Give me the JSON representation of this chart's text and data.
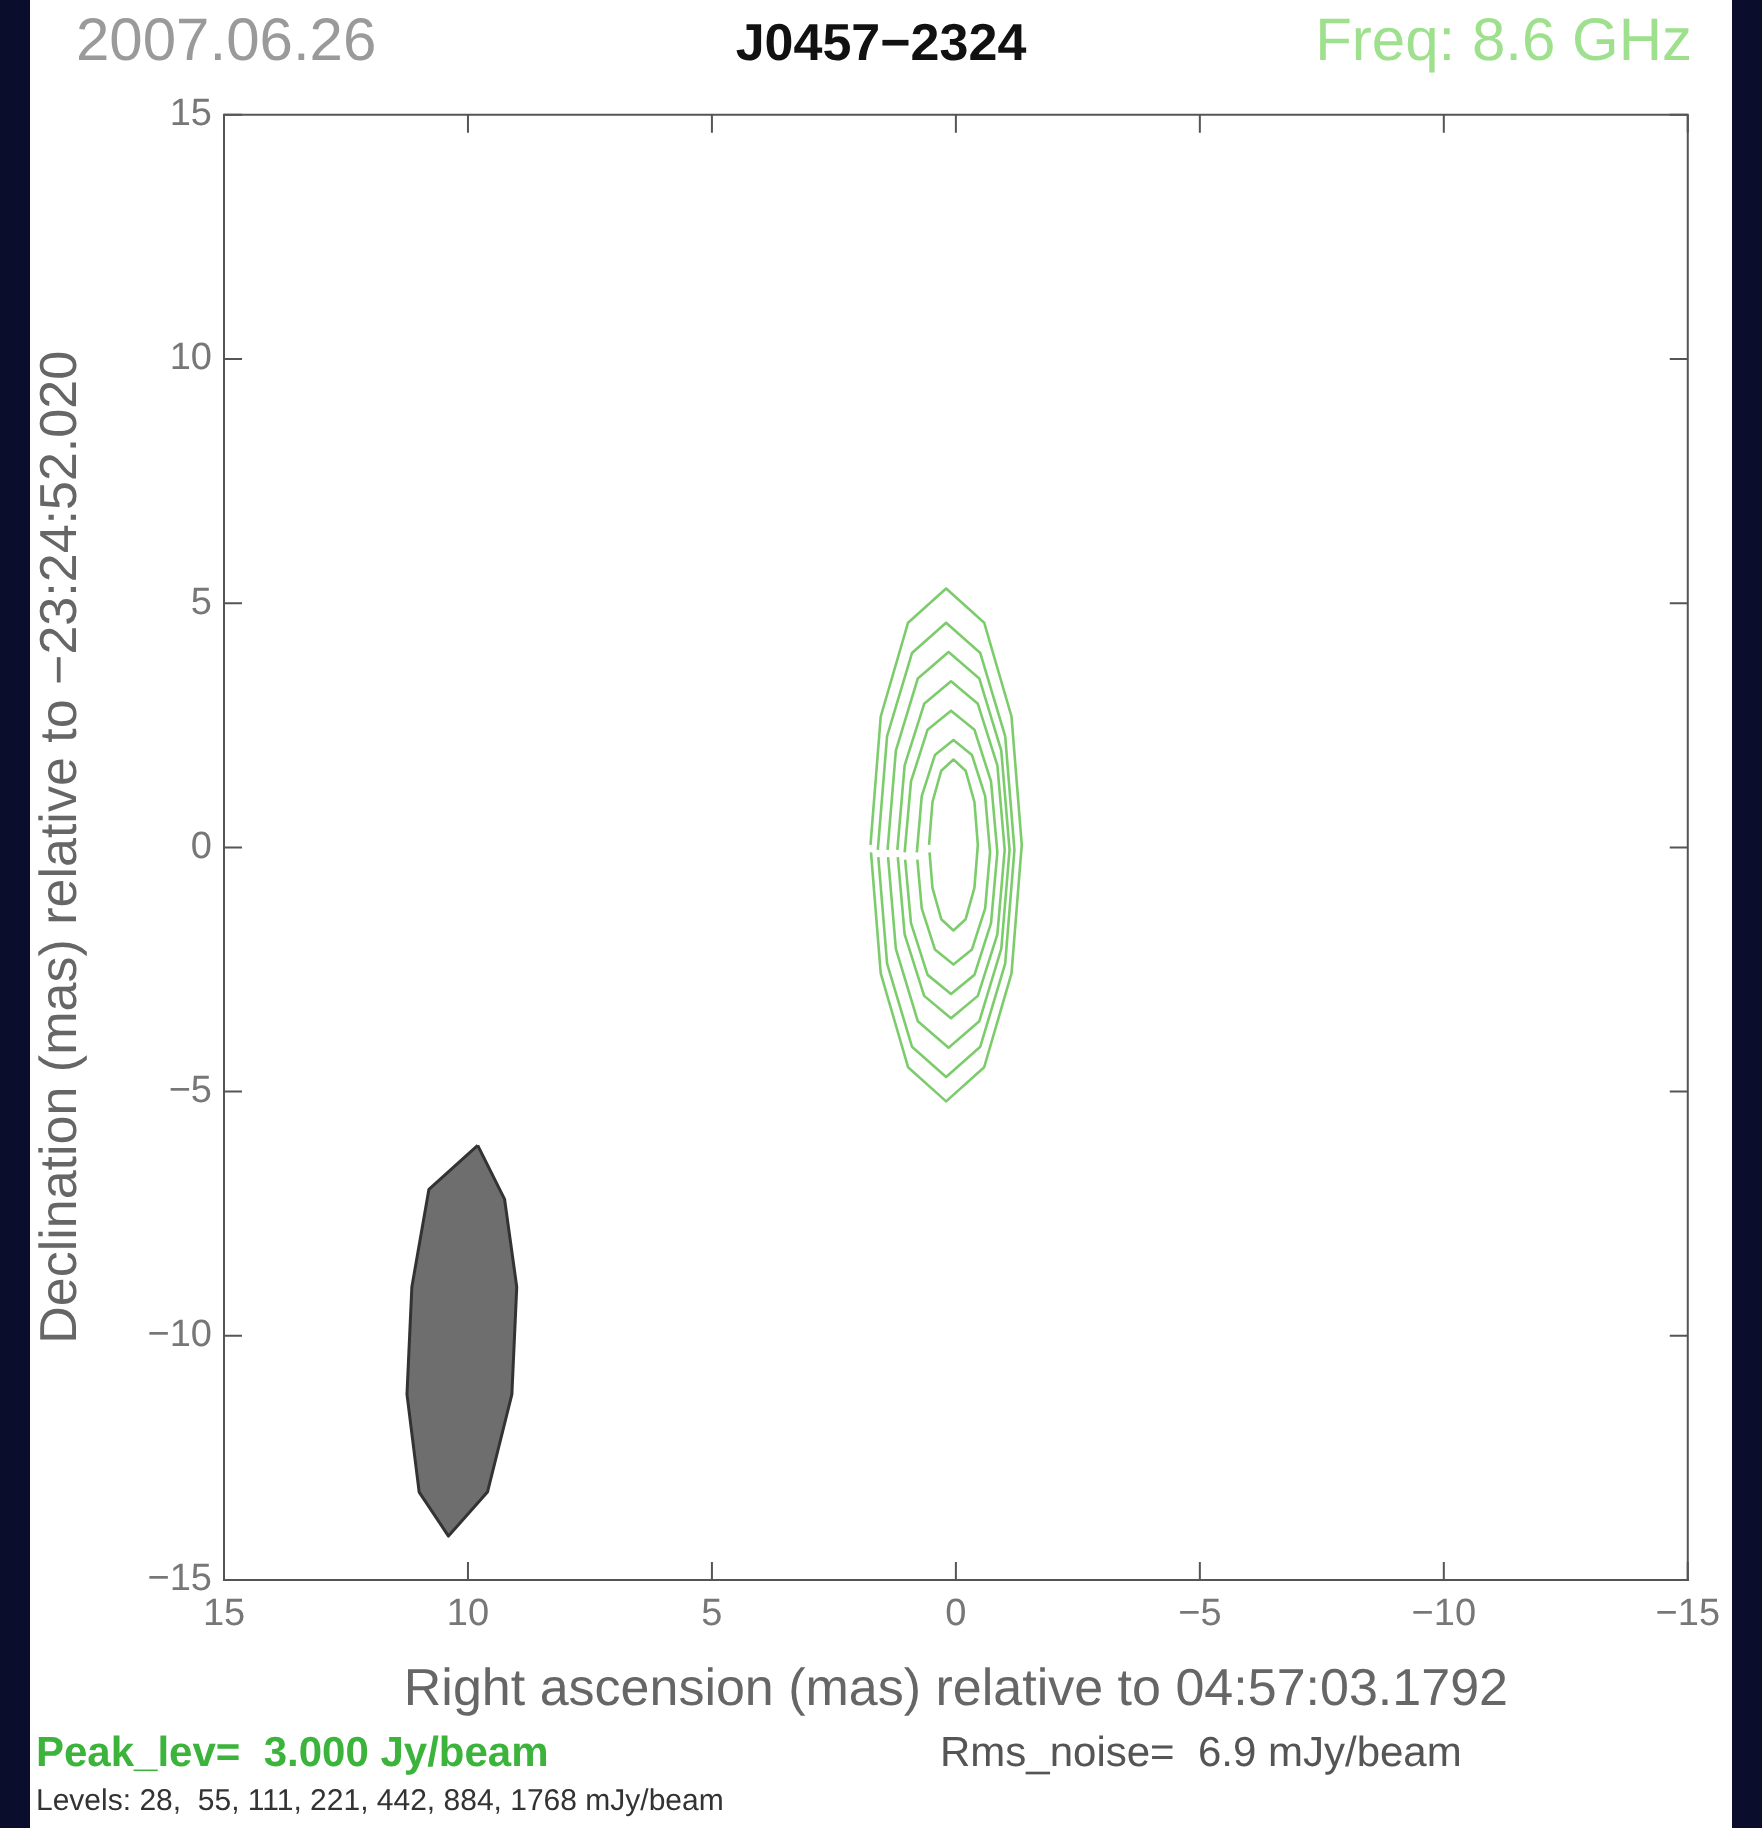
{
  "chart_data": {
    "type": "line",
    "title": "J0457−2324",
    "xlabel": "Right ascension (mas) relative to 04:57:03.1792",
    "ylabel": "Declination (mas) relative to −23:24:52.020",
    "annotations": [
      "2007.06.26",
      "Freq: 8.6 GHz",
      "Peak_lev=  3.000 Jy/beam",
      "Rms_noise=  6.9 mJy/beam",
      "Levels: 28,  55, 111, 221, 442, 884, 1768 mJy/beam"
    ],
    "xlim": [
      15,
      -15
    ],
    "xticks": [
      15,
      10,
      5,
      0,
      {
        "value": -5,
        "label": "−5"
      },
      {
        "value": -10,
        "label": "−10"
      },
      {
        "value": -15,
        "label": "−15"
      }
    ],
    "ylim": [
      -15,
      15
    ],
    "yticks": [
      {
        "value": -15,
        "label": "−15"
      },
      {
        "value": -10,
        "label": "−10"
      },
      {
        "value": -5,
        "label": "−5"
      },
      0,
      5,
      10,
      15
    ],
    "grid": false,
    "legend": false,
    "marker": "none",
    "line_style": "solid",
    "series": [
      {
        "color": "#7ccc6c",
        "x": [
          1.75,
          1.54,
          0.98,
          0.2,
          -0.58,
          -1.14,
          -1.35,
          -1.14,
          -0.58,
          0.2,
          0.98,
          1.54,
          1.74
        ],
        "values": [
          0.05,
          2.68,
          4.6,
          5.3,
          4.6,
          2.68,
          0.05,
          -2.58,
          -4.5,
          -5.2,
          -4.5,
          -2.58,
          -0.1
        ]
      },
      {
        "color": "#7ccc6c",
        "x": [
          1.6,
          1.41,
          0.9,
          0.2,
          -0.5,
          -1.01,
          -1.2,
          -1.01,
          -0.5,
          0.2,
          0.9,
          1.41,
          1.59
        ],
        "values": [
          -0.05,
          2.28,
          3.98,
          4.6,
          3.98,
          2.28,
          -0.05,
          -2.38,
          -4.08,
          -4.7,
          -4.08,
          -2.38,
          -0.2
        ]
      },
      {
        "color": "#7ccc6c",
        "x": [
          1.4,
          1.23,
          0.78,
          0.15,
          -0.48,
          -0.93,
          -1.1,
          -0.93,
          -0.48,
          0.15,
          0.78,
          1.23,
          1.39
        ],
        "values": [
          -0.05,
          1.98,
          3.46,
          4.0,
          3.46,
          1.98,
          -0.05,
          -2.08,
          -3.56,
          -4.1,
          -3.56,
          -2.08,
          -0.2
        ]
      },
      {
        "color": "#7ccc6c",
        "x": [
          1.2,
          1.05,
          0.65,
          0.1,
          -0.45,
          -0.85,
          -1.0,
          -0.85,
          -0.45,
          0.1,
          0.65,
          1.05,
          1.19
        ],
        "values": [
          -0.05,
          1.68,
          2.94,
          3.4,
          2.94,
          1.68,
          -0.05,
          -1.78,
          -3.04,
          -3.5,
          -3.04,
          -1.78,
          -0.2
        ]
      },
      {
        "color": "#7ccc6c",
        "x": [
          1.05,
          0.92,
          0.58,
          0.1,
          -0.38,
          -0.72,
          -0.85,
          -0.72,
          -0.38,
          0.1,
          0.58,
          0.92,
          1.04
        ],
        "values": [
          -0.1,
          1.35,
          2.41,
          2.8,
          2.41,
          1.35,
          -0.1,
          -1.55,
          -2.61,
          -3.0,
          -2.61,
          -1.55,
          -0.25
        ]
      },
      {
        "color": "#7ccc6c",
        "x": [
          0.8,
          0.7,
          0.43,
          0.05,
          -0.33,
          -0.6,
          -0.7,
          -0.6,
          -0.33,
          0.05,
          0.43,
          0.7,
          0.79
        ],
        "values": [
          -0.1,
          1.05,
          1.89,
          2.2,
          1.89,
          1.05,
          -0.1,
          -1.25,
          -2.09,
          -2.4,
          -2.09,
          -1.25,
          -0.25
        ]
      },
      {
        "color": "#7ccc6c",
        "x": [
          0.55,
          0.48,
          0.3,
          0.05,
          -0.2,
          -0.38,
          -0.45,
          -0.38,
          -0.2,
          0.05,
          0.3,
          0.48,
          0.54
        ],
        "values": [
          0.05,
          0.93,
          1.57,
          1.8,
          1.57,
          0.93,
          0.05,
          -0.83,
          -1.47,
          -1.7,
          -1.47,
          -0.83,
          -0.1
        ]
      },
      {
        "type": "area",
        "color": "#6e6e6e",
        "x": [
          9.8,
          9.25,
          9.0,
          9.1,
          9.6,
          10.4,
          11.0,
          11.25,
          11.15,
          10.8,
          9.8
        ],
        "values": [
          -6.1,
          -7.2,
          -9.0,
          -11.2,
          -13.2,
          -14.1,
          -13.2,
          -11.2,
          -9.0,
          -7.0,
          -6.1
        ]
      }
    ]
  }
}
